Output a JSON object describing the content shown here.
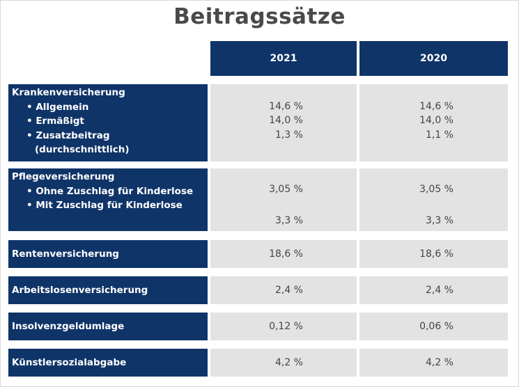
{
  "title": "Beitragssätze",
  "headers": [
    "2021",
    "2020"
  ],
  "kv": {
    "label": "Krankenversicherung",
    "items": [
      "• Allgemein",
      "• Ermäßigt",
      "• Zusatzbeitrag (durchschnittlich)"
    ],
    "v2021": [
      "14,6 %",
      "14,0 %",
      "1,3 %"
    ],
    "v2020": [
      "14,6 %",
      "14,0 %",
      "1,1 %"
    ]
  },
  "pv": {
    "label": "Pflegeversicherung",
    "items": [
      "• Ohne Zuschlag für Kinderlose",
      "• Mit Zuschlag für Kinderlose"
    ],
    "v2021": [
      "3,05 %",
      "3,3 %"
    ],
    "v2020": [
      "3,05 %",
      "3,3 %"
    ]
  },
  "rows": [
    {
      "label": "Rentenversicherung",
      "v2021": "18,6 %",
      "v2020": "18,6 %"
    },
    {
      "label": "Arbeitslosenversicherung",
      "v2021": "2,4 %",
      "v2020": "2,4 %"
    },
    {
      "label": "Insolvenzgeldumlage",
      "v2021": "0,12 %",
      "v2020": "0,06 %"
    },
    {
      "label": "Künstlersozialabgabe",
      "v2021": "4,2 %",
      "v2020": "4,2 %"
    }
  ]
}
